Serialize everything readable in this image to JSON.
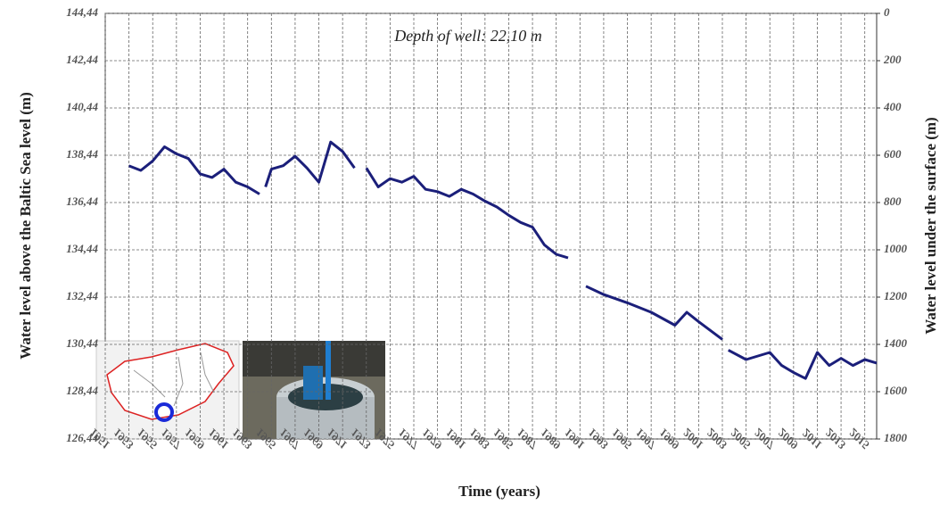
{
  "chart_data": {
    "type": "line",
    "annotation": "Depth of well: 22,10 m",
    "x_label": "Time (years)",
    "y_label": "Water level above the Baltic Sea level (m)",
    "y2_label": "Water level under the surface (m)",
    "x": [
      1953,
      1954,
      1955,
      1956,
      1957,
      1958,
      1959,
      1960,
      1961,
      1962,
      1963,
      1964,
      1964.2,
      1964.5,
      1965,
      1966,
      1967,
      1968,
      1969,
      1970,
      1971,
      1972,
      1972.5,
      1973,
      1974,
      1975,
      1976,
      1977,
      1978,
      1979,
      1980,
      1981,
      1982,
      1983,
      1984,
      1985,
      1986,
      1987,
      1988,
      1989,
      1990,
      1991,
      1991.5,
      1993,
      1995,
      1997,
      1999,
      2000,
      2001,
      2003,
      2003.2,
      2003.5,
      2005,
      2007,
      2008,
      2009,
      2010,
      2011,
      2012,
      2013,
      2014,
      2015,
      2016
    ],
    "series": [
      {
        "name": "Water level",
        "color": "#1b1f7a",
        "values": [
          137.99,
          137.8,
          138.2,
          138.8,
          138.5,
          138.3,
          137.65,
          137.5,
          137.85,
          137.3,
          137.1,
          136.8,
          null,
          137.1,
          137.85,
          138.0,
          138.4,
          137.9,
          137.3,
          139.0,
          138.6,
          137.9,
          null,
          137.9,
          137.1,
          137.45,
          137.3,
          137.55,
          137.0,
          136.9,
          136.7,
          137.0,
          136.8,
          136.5,
          136.25,
          135.9,
          135.6,
          135.4,
          134.65,
          134.25,
          134.1,
          null,
          132.9,
          132.55,
          132.2,
          131.8,
          131.25,
          131.8,
          131.4,
          130.65,
          null,
          130.2,
          129.8,
          130.1,
          129.55,
          129.25,
          129.0,
          130.1,
          129.55,
          129.85,
          129.55,
          129.8,
          129.65
        ]
      }
    ],
    "xlim": [
      1951,
      2016
    ],
    "xticks": [
      1951,
      1953,
      1955,
      1957,
      1959,
      1961,
      1963,
      1965,
      1967,
      1969,
      1971,
      1973,
      1975,
      1977,
      1979,
      1981,
      1983,
      1985,
      1987,
      1989,
      1991,
      1993,
      1995,
      1997,
      1999,
      2001,
      2003,
      2005,
      2007,
      2009,
      2011,
      2013,
      2015
    ],
    "ylim": [
      126.44,
      144.44
    ],
    "yticks": [
      {
        "value": 126.44,
        "label": "126,44"
      },
      {
        "value": 128.44,
        "label": "128,44"
      },
      {
        "value": 130.44,
        "label": "130,44"
      },
      {
        "value": 132.44,
        "label": "132,44"
      },
      {
        "value": 134.44,
        "label": "134,44"
      },
      {
        "value": 136.44,
        "label": "136,44"
      },
      {
        "value": 138.44,
        "label": "138,44"
      },
      {
        "value": 140.44,
        "label": "140,44"
      },
      {
        "value": 142.44,
        "label": "142,44"
      },
      {
        "value": 144.44,
        "label": "144,44"
      }
    ],
    "y2lim": [
      1800,
      0
    ],
    "y2ticks": [
      0,
      200,
      400,
      600,
      800,
      1000,
      1200,
      1400,
      1600,
      1800
    ],
    "grid": true
  }
}
